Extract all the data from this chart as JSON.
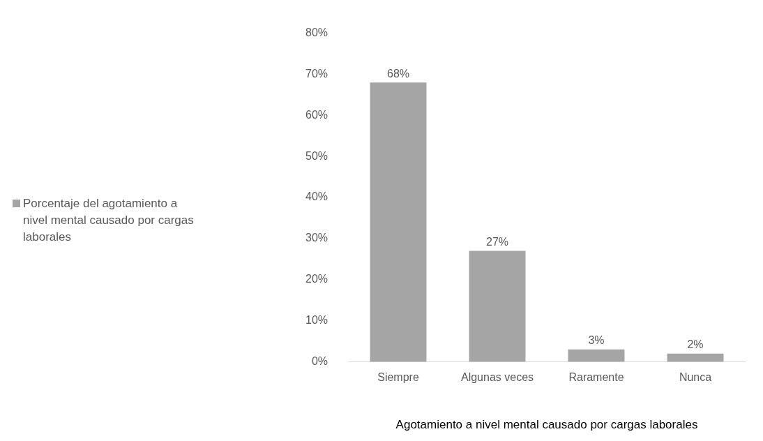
{
  "chart_data": {
    "type": "bar",
    "xlabel": "Agotamiento a nivel mental causado por cargas laborales",
    "categories": [
      "Siempre",
      "Algunas veces",
      "Raramente",
      "Nunca"
    ],
    "series": [
      {
        "name": "Porcentaje del agotamiento a nivel mental causado por cargas laborales",
        "color": "#a5a5a5",
        "values": [
          68,
          27,
          3,
          2
        ],
        "value_labels": [
          "68%",
          "27%",
          "3%",
          "2%"
        ]
      }
    ],
    "ylim": [
      0,
      80
    ],
    "yticks": [
      {
        "value": 0,
        "label": "0%"
      },
      {
        "value": 10,
        "label": "10%"
      },
      {
        "value": 20,
        "label": "20%"
      },
      {
        "value": 30,
        "label": "30%"
      },
      {
        "value": 40,
        "label": "40%"
      },
      {
        "value": 50,
        "label": "50%"
      },
      {
        "value": 60,
        "label": "60%"
      },
      {
        "value": 70,
        "label": "70%"
      },
      {
        "value": 80,
        "label": "80%"
      }
    ],
    "grid": false,
    "legend": "left"
  }
}
